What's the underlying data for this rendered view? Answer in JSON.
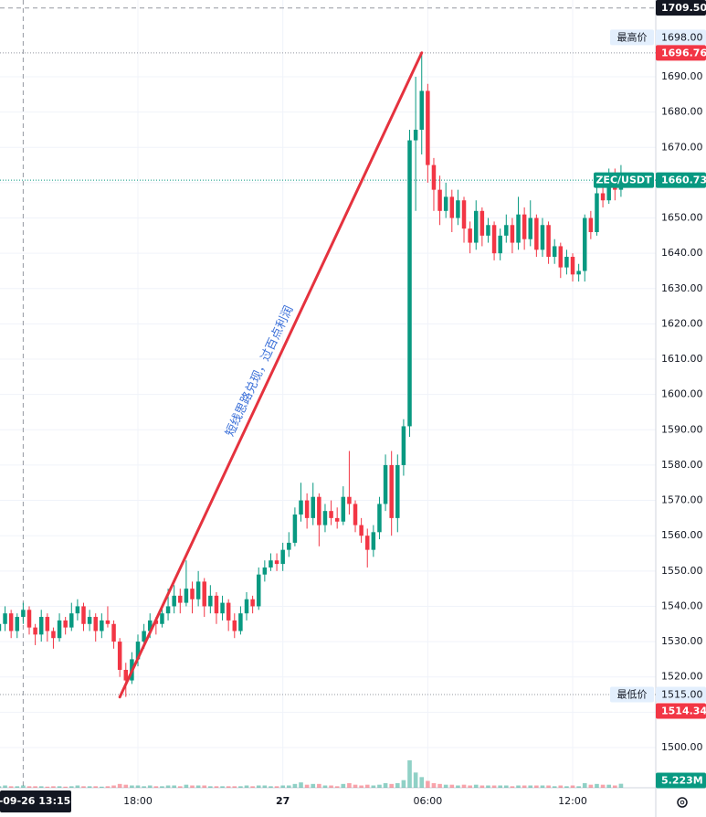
{
  "chart_data": {
    "type": "candlestick",
    "symbol": "ZEC/USDT",
    "up_color": "#089981",
    "down_color": "#f23645",
    "grid": true,
    "x": [
      12.25,
      12.5,
      12.75,
      13.0,
      13.25,
      13.5,
      13.75,
      14.0,
      14.25,
      14.5,
      14.75,
      15.0,
      15.25,
      15.5,
      15.75,
      16.0,
      16.25,
      16.5,
      16.75,
      17.0,
      17.25,
      17.5,
      17.75,
      18.0,
      18.25,
      18.5,
      18.75,
      19.0,
      19.25,
      19.5,
      19.75,
      20.0,
      20.25,
      20.5,
      20.75,
      21.0,
      21.25,
      21.5,
      21.75,
      22.0,
      22.25,
      22.5,
      22.75,
      23.0,
      23.25,
      23.5,
      23.75,
      24.0,
      24.25,
      24.5,
      24.75,
      25.0,
      25.25,
      25.5,
      25.75,
      26.0,
      26.25,
      26.5,
      26.75,
      27.0,
      27.25,
      27.5,
      27.75,
      28.0,
      28.25,
      28.5,
      28.75,
      29.0,
      29.25,
      29.5,
      29.75,
      30.0,
      30.25,
      30.5,
      30.75,
      31.0,
      31.25,
      31.5,
      31.75,
      32.0,
      32.25,
      32.5,
      32.75,
      33.0,
      33.25,
      33.5,
      33.75,
      34.0,
      34.25,
      34.5,
      34.75,
      35.0,
      35.25,
      35.5,
      35.75,
      36.0,
      36.25,
      36.5,
      36.75,
      37.0,
      37.25,
      37.5,
      37.75,
      38.0
    ],
    "ohlc": [
      [
        1533,
        1537,
        1530,
        1535
      ],
      [
        1535,
        1540,
        1533,
        1538
      ],
      [
        1538,
        1539,
        1531,
        1533
      ],
      [
        1533,
        1538,
        1531,
        1537
      ],
      [
        1537,
        1541,
        1535,
        1539
      ],
      [
        1539,
        1540,
        1532,
        1534
      ],
      [
        1534,
        1535,
        1529,
        1532
      ],
      [
        1532,
        1539,
        1530,
        1537
      ],
      [
        1537,
        1538,
        1530,
        1533
      ],
      [
        1533,
        1534,
        1528,
        1531
      ],
      [
        1531,
        1538,
        1530,
        1536
      ],
      [
        1536,
        1537,
        1532,
        1534
      ],
      [
        1534,
        1541,
        1533,
        1538
      ],
      [
        1538,
        1542,
        1536,
        1540
      ],
      [
        1540,
        1541,
        1533,
        1535
      ],
      [
        1535,
        1539,
        1533,
        1537
      ],
      [
        1537,
        1538,
        1530,
        1533
      ],
      [
        1533,
        1538,
        1531,
        1536
      ],
      [
        1536,
        1540,
        1534,
        1535
      ],
      [
        1535,
        1536,
        1528,
        1530
      ],
      [
        1530,
        1531,
        1520,
        1522
      ],
      [
        1522,
        1524,
        1514.34,
        1519
      ],
      [
        1519,
        1527,
        1518,
        1525
      ],
      [
        1525,
        1532,
        1523,
        1530
      ],
      [
        1530,
        1535,
        1528,
        1533
      ],
      [
        1533,
        1538,
        1531,
        1536
      ],
      [
        1536,
        1537,
        1532,
        1535
      ],
      [
        1535,
        1540,
        1534,
        1538
      ],
      [
        1538,
        1545,
        1536,
        1540
      ],
      [
        1540,
        1546,
        1538,
        1543
      ],
      [
        1543,
        1545,
        1538,
        1541
      ],
      [
        1541,
        1553,
        1540,
        1545
      ],
      [
        1545,
        1547,
        1538,
        1542
      ],
      [
        1542,
        1550,
        1540,
        1547
      ],
      [
        1547,
        1548,
        1537,
        1540
      ],
      [
        1540,
        1546,
        1538,
        1543
      ],
      [
        1543,
        1544,
        1535,
        1538
      ],
      [
        1538,
        1543,
        1536,
        1541
      ],
      [
        1541,
        1542,
        1533,
        1536
      ],
      [
        1536,
        1538,
        1531,
        1533
      ],
      [
        1533,
        1540,
        1532,
        1538
      ],
      [
        1538,
        1544,
        1536,
        1542
      ],
      [
        1542,
        1543,
        1538,
        1540
      ],
      [
        1540,
        1551,
        1539,
        1549
      ],
      [
        1549,
        1553,
        1547,
        1551
      ],
      [
        1551,
        1555,
        1550,
        1553
      ],
      [
        1553,
        1555,
        1550,
        1552
      ],
      [
        1552,
        1558,
        1550,
        1556
      ],
      [
        1556,
        1561,
        1554,
        1558
      ],
      [
        1558,
        1568,
        1557,
        1566
      ],
      [
        1566,
        1575,
        1564,
        1570
      ],
      [
        1570,
        1572,
        1562,
        1565
      ],
      [
        1565,
        1575,
        1563,
        1571
      ],
      [
        1571,
        1572,
        1557,
        1563
      ],
      [
        1563,
        1569,
        1561,
        1567
      ],
      [
        1567,
        1570,
        1563,
        1565
      ],
      [
        1565,
        1568,
        1562,
        1564
      ],
      [
        1564,
        1574,
        1563,
        1571
      ],
      [
        1571,
        1584,
        1566,
        1569
      ],
      [
        1569,
        1570,
        1561,
        1563
      ],
      [
        1563,
        1565,
        1558,
        1560
      ],
      [
        1560,
        1562,
        1551,
        1556
      ],
      [
        1556,
        1563,
        1554,
        1561
      ],
      [
        1561,
        1571,
        1559,
        1569
      ],
      [
        1569,
        1583,
        1567,
        1580
      ],
      [
        1580,
        1584,
        1560,
        1565
      ],
      [
        1565,
        1583,
        1561,
        1580
      ],
      [
        1580,
        1593,
        1577,
        1591
      ],
      [
        1591,
        1675,
        1588,
        1672
      ],
      [
        1672,
        1690,
        1652,
        1675
      ],
      [
        1675,
        1696.76,
        1668,
        1686
      ],
      [
        1686,
        1688,
        1660,
        1665
      ],
      [
        1665,
        1667,
        1652,
        1658
      ],
      [
        1658,
        1662,
        1648,
        1652
      ],
      [
        1652,
        1660,
        1650,
        1656
      ],
      [
        1656,
        1658,
        1646,
        1650
      ],
      [
        1650,
        1658,
        1648,
        1655
      ],
      [
        1655,
        1656,
        1643,
        1647
      ],
      [
        1647,
        1649,
        1640,
        1643
      ],
      [
        1643,
        1655,
        1641,
        1652
      ],
      [
        1652,
        1653,
        1642,
        1645
      ],
      [
        1645,
        1650,
        1643,
        1648
      ],
      [
        1648,
        1649,
        1638,
        1640
      ],
      [
        1640,
        1647,
        1638,
        1645
      ],
      [
        1645,
        1651,
        1643,
        1648
      ],
      [
        1648,
        1650,
        1640,
        1643
      ],
      [
        1643,
        1656,
        1641,
        1651
      ],
      [
        1651,
        1653,
        1641,
        1644
      ],
      [
        1644,
        1655,
        1642,
        1650
      ],
      [
        1650,
        1651,
        1639,
        1641
      ],
      [
        1641,
        1650,
        1639,
        1648
      ],
      [
        1648,
        1649,
        1637,
        1639
      ],
      [
        1639,
        1644,
        1637,
        1642
      ],
      [
        1642,
        1643,
        1633,
        1636
      ],
      [
        1636,
        1641,
        1634,
        1639
      ],
      [
        1639,
        1640,
        1632,
        1634
      ],
      [
        1634,
        1637,
        1632,
        1635
      ],
      [
        1635,
        1651,
        1632,
        1650
      ],
      [
        1650,
        1652,
        1644,
        1646
      ],
      [
        1646,
        1659,
        1645,
        1657
      ],
      [
        1657,
        1660,
        1653,
        1655
      ],
      [
        1655,
        1664,
        1654,
        1662
      ],
      [
        1662,
        1664,
        1655,
        1658
      ],
      [
        1658,
        1665,
        1656,
        1660.73
      ]
    ],
    "volume": [
      2,
      3,
      2,
      2,
      3,
      2,
      2,
      2,
      1.5,
      2,
      2,
      1.5,
      2,
      3,
      2,
      2,
      2,
      1.5,
      2,
      3,
      5,
      4,
      3,
      3,
      2,
      3,
      2,
      2,
      3,
      3,
      2,
      4,
      3,
      3,
      3,
      2,
      2,
      2,
      2,
      2,
      2,
      3,
      2,
      3,
      3,
      2,
      2,
      3,
      3,
      5,
      7,
      4,
      5,
      5,
      3,
      3,
      2,
      5,
      6,
      4,
      3,
      4,
      3,
      4,
      6,
      5,
      6,
      10,
      36,
      20,
      14,
      9,
      6,
      5,
      4,
      4,
      3,
      4,
      3,
      4,
      3,
      3,
      3,
      3,
      3,
      2,
      3,
      3,
      3,
      3,
      3,
      3,
      2,
      3,
      2,
      3,
      2,
      6,
      4,
      5,
      4,
      4,
      3,
      5.223
    ],
    "volume_label": "5.223M",
    "xlim": [
      12.29,
      39.44
    ],
    "xticks": [
      {
        "value": 18,
        "label": "18:00"
      },
      {
        "value": 24,
        "label": "27"
      },
      {
        "value": 30,
        "label": "06:00"
      },
      {
        "value": 36,
        "label": "12:00"
      }
    ],
    "ylim": [
      1488.6,
      1711.75
    ],
    "yticks": [
      {
        "value": 1500,
        "label": "1500.00"
      },
      {
        "value": 1510,
        "label": "1510.00"
      },
      {
        "value": 1520,
        "label": "1520.00"
      },
      {
        "value": 1530,
        "label": "1530.00"
      },
      {
        "value": 1540,
        "label": "1540.00"
      },
      {
        "value": 1550,
        "label": "1550.00"
      },
      {
        "value": 1560,
        "label": "1560.00"
      },
      {
        "value": 1570,
        "label": "1570.00"
      },
      {
        "value": 1580,
        "label": "1580.00"
      },
      {
        "value": 1590,
        "label": "1590.00"
      },
      {
        "value": 1600,
        "label": "1600.00"
      },
      {
        "value": 1610,
        "label": "1610.00"
      },
      {
        "value": 1620,
        "label": "1620.00"
      },
      {
        "value": 1630,
        "label": "1630.00"
      },
      {
        "value": 1640,
        "label": "1640.00"
      },
      {
        "value": 1650,
        "label": "1650.00"
      },
      {
        "value": 1660,
        "label": "1660.00"
      },
      {
        "value": 1670,
        "label": "1670.00"
      },
      {
        "value": 1680,
        "label": "1680.00"
      },
      {
        "value": 1690,
        "label": "1690.00"
      }
    ],
    "crosshair": {
      "price": 1709.5,
      "price_label": "1709.50",
      "time": 13.25,
      "time_label": "-09-26  13:15"
    },
    "high": {
      "text": "最高价",
      "price": 1698.0,
      "price_label": "1698.00",
      "value": 1696.76,
      "value_label": "1696.76"
    },
    "low": {
      "text": "最低价",
      "price": 1515.0,
      "price_label": "1515.00",
      "value": 1514.34,
      "value_label": "1514.34"
    },
    "last": {
      "value": 1660.73,
      "value_label": "1660.73",
      "color": "#089981"
    },
    "trendline": {
      "x": [
        17.25,
        29.75
      ],
      "y": [
        1514.3,
        1696.8
      ],
      "color": "#e5323e",
      "text": "短线思路兑现，过百点利润",
      "text_color": "#3a6fd8"
    }
  }
}
